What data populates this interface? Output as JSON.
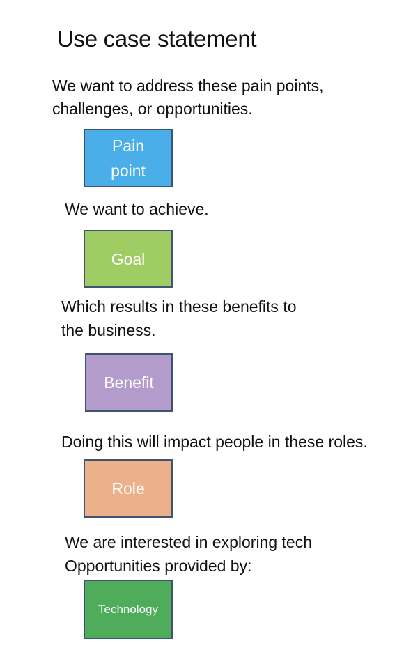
{
  "title": "Use case statement",
  "statements": {
    "pain": "We want to address these pain points,",
    "pain_line2": "challenges, or opportunities.",
    "goal": "We want to achieve.",
    "benefit": "Which results in these benefits to",
    "benefit_line2": "the business.",
    "role": "Doing this will impact people in these roles.",
    "tech": "We are interested in exploring tech",
    "tech_line2": "Opportunities provided by:"
  },
  "boxes": {
    "pain_line1": "Pain",
    "pain_line2": "point",
    "goal": "Goal",
    "benefit": "Benefit",
    "role": "Role",
    "technology": "Technology"
  },
  "colors": {
    "pain": "#4aaee8",
    "goal": "#a0cc64",
    "benefit": "#b39ccb",
    "role": "#ecb08a",
    "technology": "#4eac5a",
    "border": "#3f5472"
  }
}
